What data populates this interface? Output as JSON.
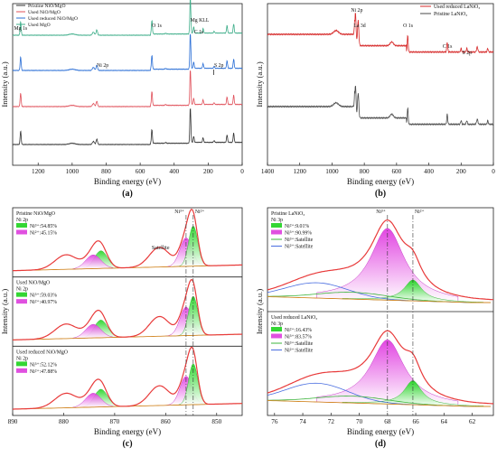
{
  "chart_data": [
    {
      "id": "a",
      "type": "line",
      "panel_label": "(a)",
      "xlabel": "Binding energy (eV)",
      "ylabel": "Intensity (a.u.)",
      "xlim": [
        1350,
        0
      ],
      "xticks": [
        "1200",
        "1000",
        "800",
        "600",
        "400",
        "200",
        "0"
      ],
      "legend_position": "top-left",
      "series": [
        {
          "name": "Pristine NiO/MgO",
          "color": "#333333"
        },
        {
          "name": "Used NiO/MgO",
          "color": "#e0505a"
        },
        {
          "name": "Used reduced NiO/MgO",
          "color": "#2b6fd6"
        },
        {
          "name": "Used MgO",
          "color": "#3fae8a"
        }
      ],
      "peaks": [
        {
          "x": 1303,
          "h": 0.9,
          "w": 3
        },
        {
          "x": 1000,
          "h": 0.08,
          "w": 18
        },
        {
          "x": 875,
          "h": 0.2,
          "w": 6
        },
        {
          "x": 855,
          "h": 0.35,
          "w": 4
        },
        {
          "x": 531,
          "h": 0.9,
          "w": 3
        },
        {
          "x": 450,
          "h": 0.05,
          "w": 4
        },
        {
          "x": 305,
          "h": 2.3,
          "w": 3
        },
        {
          "x": 285,
          "h": 0.4,
          "w": 3
        },
        {
          "x": 230,
          "h": 0.3,
          "w": 3
        },
        {
          "x": 165,
          "h": 0.12,
          "w": 3
        },
        {
          "x": 89,
          "h": 0.5,
          "w": 3
        },
        {
          "x": 50,
          "h": 0.6,
          "w": 3
        }
      ],
      "annotations": [
        {
          "text": "Mg 1s",
          "x": 1303
        },
        {
          "text": "O 1s",
          "x": 531
        },
        {
          "text": "Mg KLL",
          "x": 305
        },
        {
          "text": "C 1s",
          "x": 283
        },
        {
          "text": "Ni 2p",
          "x": 855
        },
        {
          "text": "S 2p",
          "x": 165
        }
      ]
    },
    {
      "id": "b",
      "type": "line",
      "panel_label": "(b)",
      "xlabel": "Binding energy (eV)",
      "ylabel": "Intensity (a.u.)",
      "xlim": [
        1400,
        0
      ],
      "xticks": [
        "1400",
        "1200",
        "1000",
        "800",
        "600",
        "400",
        "200",
        "0"
      ],
      "legend_position": "top-right",
      "series": [
        {
          "name": "Used reduced LaNiO₃",
          "color": "#d62a2a"
        },
        {
          "name": "Pristine LaNiO₃",
          "color": "#4a4a4a"
        }
      ],
      "peaks": [
        {
          "x": 855,
          "h": 2.6,
          "w": 4
        },
        {
          "x": 838,
          "h": 2.0,
          "w": 4
        },
        {
          "x": 531,
          "h": 1.3,
          "w": 3
        },
        {
          "x": 286,
          "h": 0.8,
          "w": 3
        },
        {
          "x": 200,
          "h": 0.3,
          "w": 3
        },
        {
          "x": 165,
          "h": 0.3,
          "w": 3
        },
        {
          "x": 100,
          "h": 0.4,
          "w": 4
        },
        {
          "x": 35,
          "h": 0.3,
          "w": 3
        },
        {
          "x": 630,
          "h": 0.3,
          "w": 10
        },
        {
          "x": 975,
          "h": 0.3,
          "w": 15
        }
      ],
      "annotations": [
        {
          "text": "Ni 2p",
          "x": 855
        },
        {
          "text": "La 3d",
          "x": 838
        },
        {
          "text": "O 1s",
          "x": 531
        },
        {
          "text": "C 1s",
          "x": 286
        },
        {
          "text": "S 2p",
          "x": 165
        }
      ]
    },
    {
      "id": "c",
      "type": "line",
      "panel_label": "(c)",
      "xlabel": "Binding energy (eV)",
      "ylabel": "Intensity (a.u.)",
      "xlim": [
        890,
        845
      ],
      "xticks": [
        "890",
        "880",
        "870",
        "860",
        "850"
      ],
      "reference_lines": [
        {
          "label": "Ni³⁺",
          "x": 856.0
        },
        {
          "label": "Ni²⁺",
          "x": 854.6
        }
      ],
      "annotations": [
        {
          "text": "Satellite",
          "x": 861
        }
      ],
      "subpanels": [
        {
          "title": "Pristine NiO/MgO",
          "region": "Ni 2p",
          "fractions": [
            {
              "label": "Ni³⁺:54.85%",
              "value": 54.85
            },
            {
              "label": "Ni²⁺:45.15%",
              "value": 45.15
            }
          ]
        },
        {
          "title": "Used NiO/MgO",
          "region": "Ni 2p",
          "fractions": [
            {
              "label": "Ni³⁺:59.03%",
              "value": 59.03
            },
            {
              "label": "Ni²⁺:40.97%",
              "value": 40.97
            }
          ]
        },
        {
          "title": "Used reduced NiO/MgO",
          "region": "Ni 2p",
          "fractions": [
            {
              "label": "Ni³⁺:52.12%",
              "value": 52.12
            },
            {
              "label": "Ni²⁺:47.88%",
              "value": 47.88
            }
          ]
        }
      ]
    },
    {
      "id": "d",
      "type": "line",
      "panel_label": "(d)",
      "xlabel": "Binding energy (eV)",
      "ylabel": "Intensity (a.u.)",
      "xlim": [
        76.5,
        60.5
      ],
      "xticks": [
        "76",
        "74",
        "72",
        "70",
        "68",
        "66",
        "64",
        "62"
      ],
      "reference_lines": [
        {
          "label": "Ni³⁺",
          "x": 68.0
        },
        {
          "label": "Ni²⁺",
          "x": 66.2
        }
      ],
      "subpanels": [
        {
          "title": "Pristine LaNiO₃",
          "region": "Ni 3p",
          "fractions": [
            {
              "label": "Ni²⁺:9.01%",
              "value": 9.01
            },
            {
              "label": "Ni³⁺:90.99%",
              "value": 90.99
            }
          ],
          "extra_legend": [
            "Ni³⁺:Satellite",
            "Ni²⁺:Satellite"
          ]
        },
        {
          "title": "Used reduced LaNiO₃",
          "region": "Ni 3p",
          "fractions": [
            {
              "label": "Ni²⁺:16.43%",
              "value": 16.43
            },
            {
              "label": "Ni³⁺:83.57%",
              "value": 83.57
            }
          ],
          "extra_legend": [
            "Ni³⁺:Satellite",
            "Ni²⁺:Satellite"
          ]
        }
      ]
    }
  ]
}
